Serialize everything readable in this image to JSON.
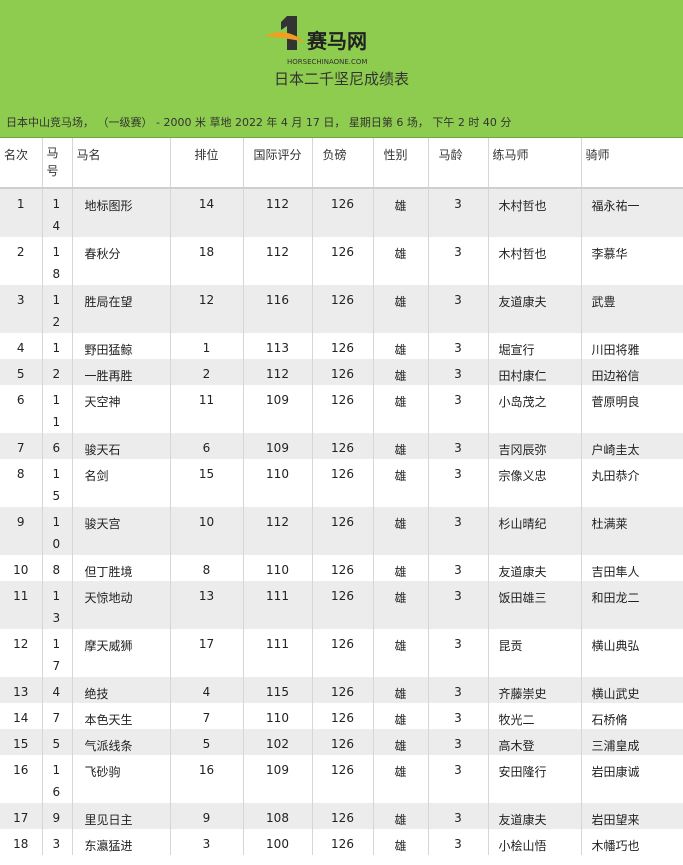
{
  "header": {
    "logo_text": "赛马网",
    "logo_site": "HORSECHINAONE.COM",
    "title": "日本二千坚尼成绩表",
    "race_info": "日本中山竞马场， （一级赛） - 2000 米 草地 2022 年 4 月 17 日， 星期日第 6 场， 下午 2 时 40 分"
  },
  "table": {
    "columns": [
      "名次",
      "马号",
      "马名",
      "排位",
      "国际评分",
      "负磅",
      "性别",
      "马龄",
      "练马师",
      "骑师"
    ],
    "rows": [
      [
        1,
        14,
        "地标图形",
        14,
        112,
        126,
        "雄",
        3,
        "木村哲也",
        "福永祐一"
      ],
      [
        2,
        18,
        "春秋分",
        18,
        112,
        126,
        "雄",
        3,
        "木村哲也",
        "李慕华"
      ],
      [
        3,
        12,
        "胜局在望",
        12,
        116,
        126,
        "雄",
        3,
        "友道康夫",
        "武豊"
      ],
      [
        4,
        1,
        "野田猛鲸",
        1,
        113,
        126,
        "雄",
        3,
        "堀宣行",
        "川田将雅"
      ],
      [
        5,
        2,
        "一胜再胜",
        2,
        112,
        126,
        "雄",
        3,
        "田村康仁",
        "田边裕信"
      ],
      [
        6,
        11,
        "天空神",
        11,
        109,
        126,
        "雄",
        3,
        "小岛茂之",
        "菅原明良"
      ],
      [
        7,
        6,
        "骏天石",
        6,
        109,
        126,
        "雄",
        3,
        "吉冈辰弥",
        "户崎圭太"
      ],
      [
        8,
        15,
        "名剑",
        15,
        110,
        126,
        "雄",
        3,
        "宗像义忠",
        "丸田恭介"
      ],
      [
        9,
        10,
        "骏天宫",
        10,
        112,
        126,
        "雄",
        3,
        "杉山晴纪",
        "杜满莱"
      ],
      [
        10,
        8,
        "但丁胜境",
        8,
        110,
        126,
        "雄",
        3,
        "友道康夫",
        "吉田隼人"
      ],
      [
        11,
        13,
        "天惊地动",
        13,
        111,
        126,
        "雄",
        3,
        "饭田雄三",
        "和田龙二"
      ],
      [
        12,
        17,
        "摩天威狮",
        17,
        111,
        126,
        "雄",
        3,
        "昆贡",
        "横山典弘"
      ],
      [
        13,
        4,
        "绝技",
        4,
        115,
        126,
        "雄",
        3,
        "齐藤崇史",
        "横山武史"
      ],
      [
        14,
        7,
        "本色天生",
        7,
        110,
        126,
        "雄",
        3,
        "牧光二",
        "石桥脩"
      ],
      [
        15,
        5,
        "气派线条",
        5,
        102,
        126,
        "雄",
        3,
        "高木登",
        "三浦皇成"
      ],
      [
        16,
        16,
        "飞砂驹",
        16,
        109,
        126,
        "雄",
        3,
        "安田隆行",
        "岩田康诚"
      ],
      [
        17,
        9,
        "里见日主",
        9,
        108,
        126,
        "雄",
        3,
        "友道康夫",
        "岩田望来"
      ],
      [
        18,
        3,
        "东瀛猛进",
        3,
        100,
        126,
        "雄",
        3,
        "小桧山悟",
        "木幡巧也"
      ]
    ]
  }
}
